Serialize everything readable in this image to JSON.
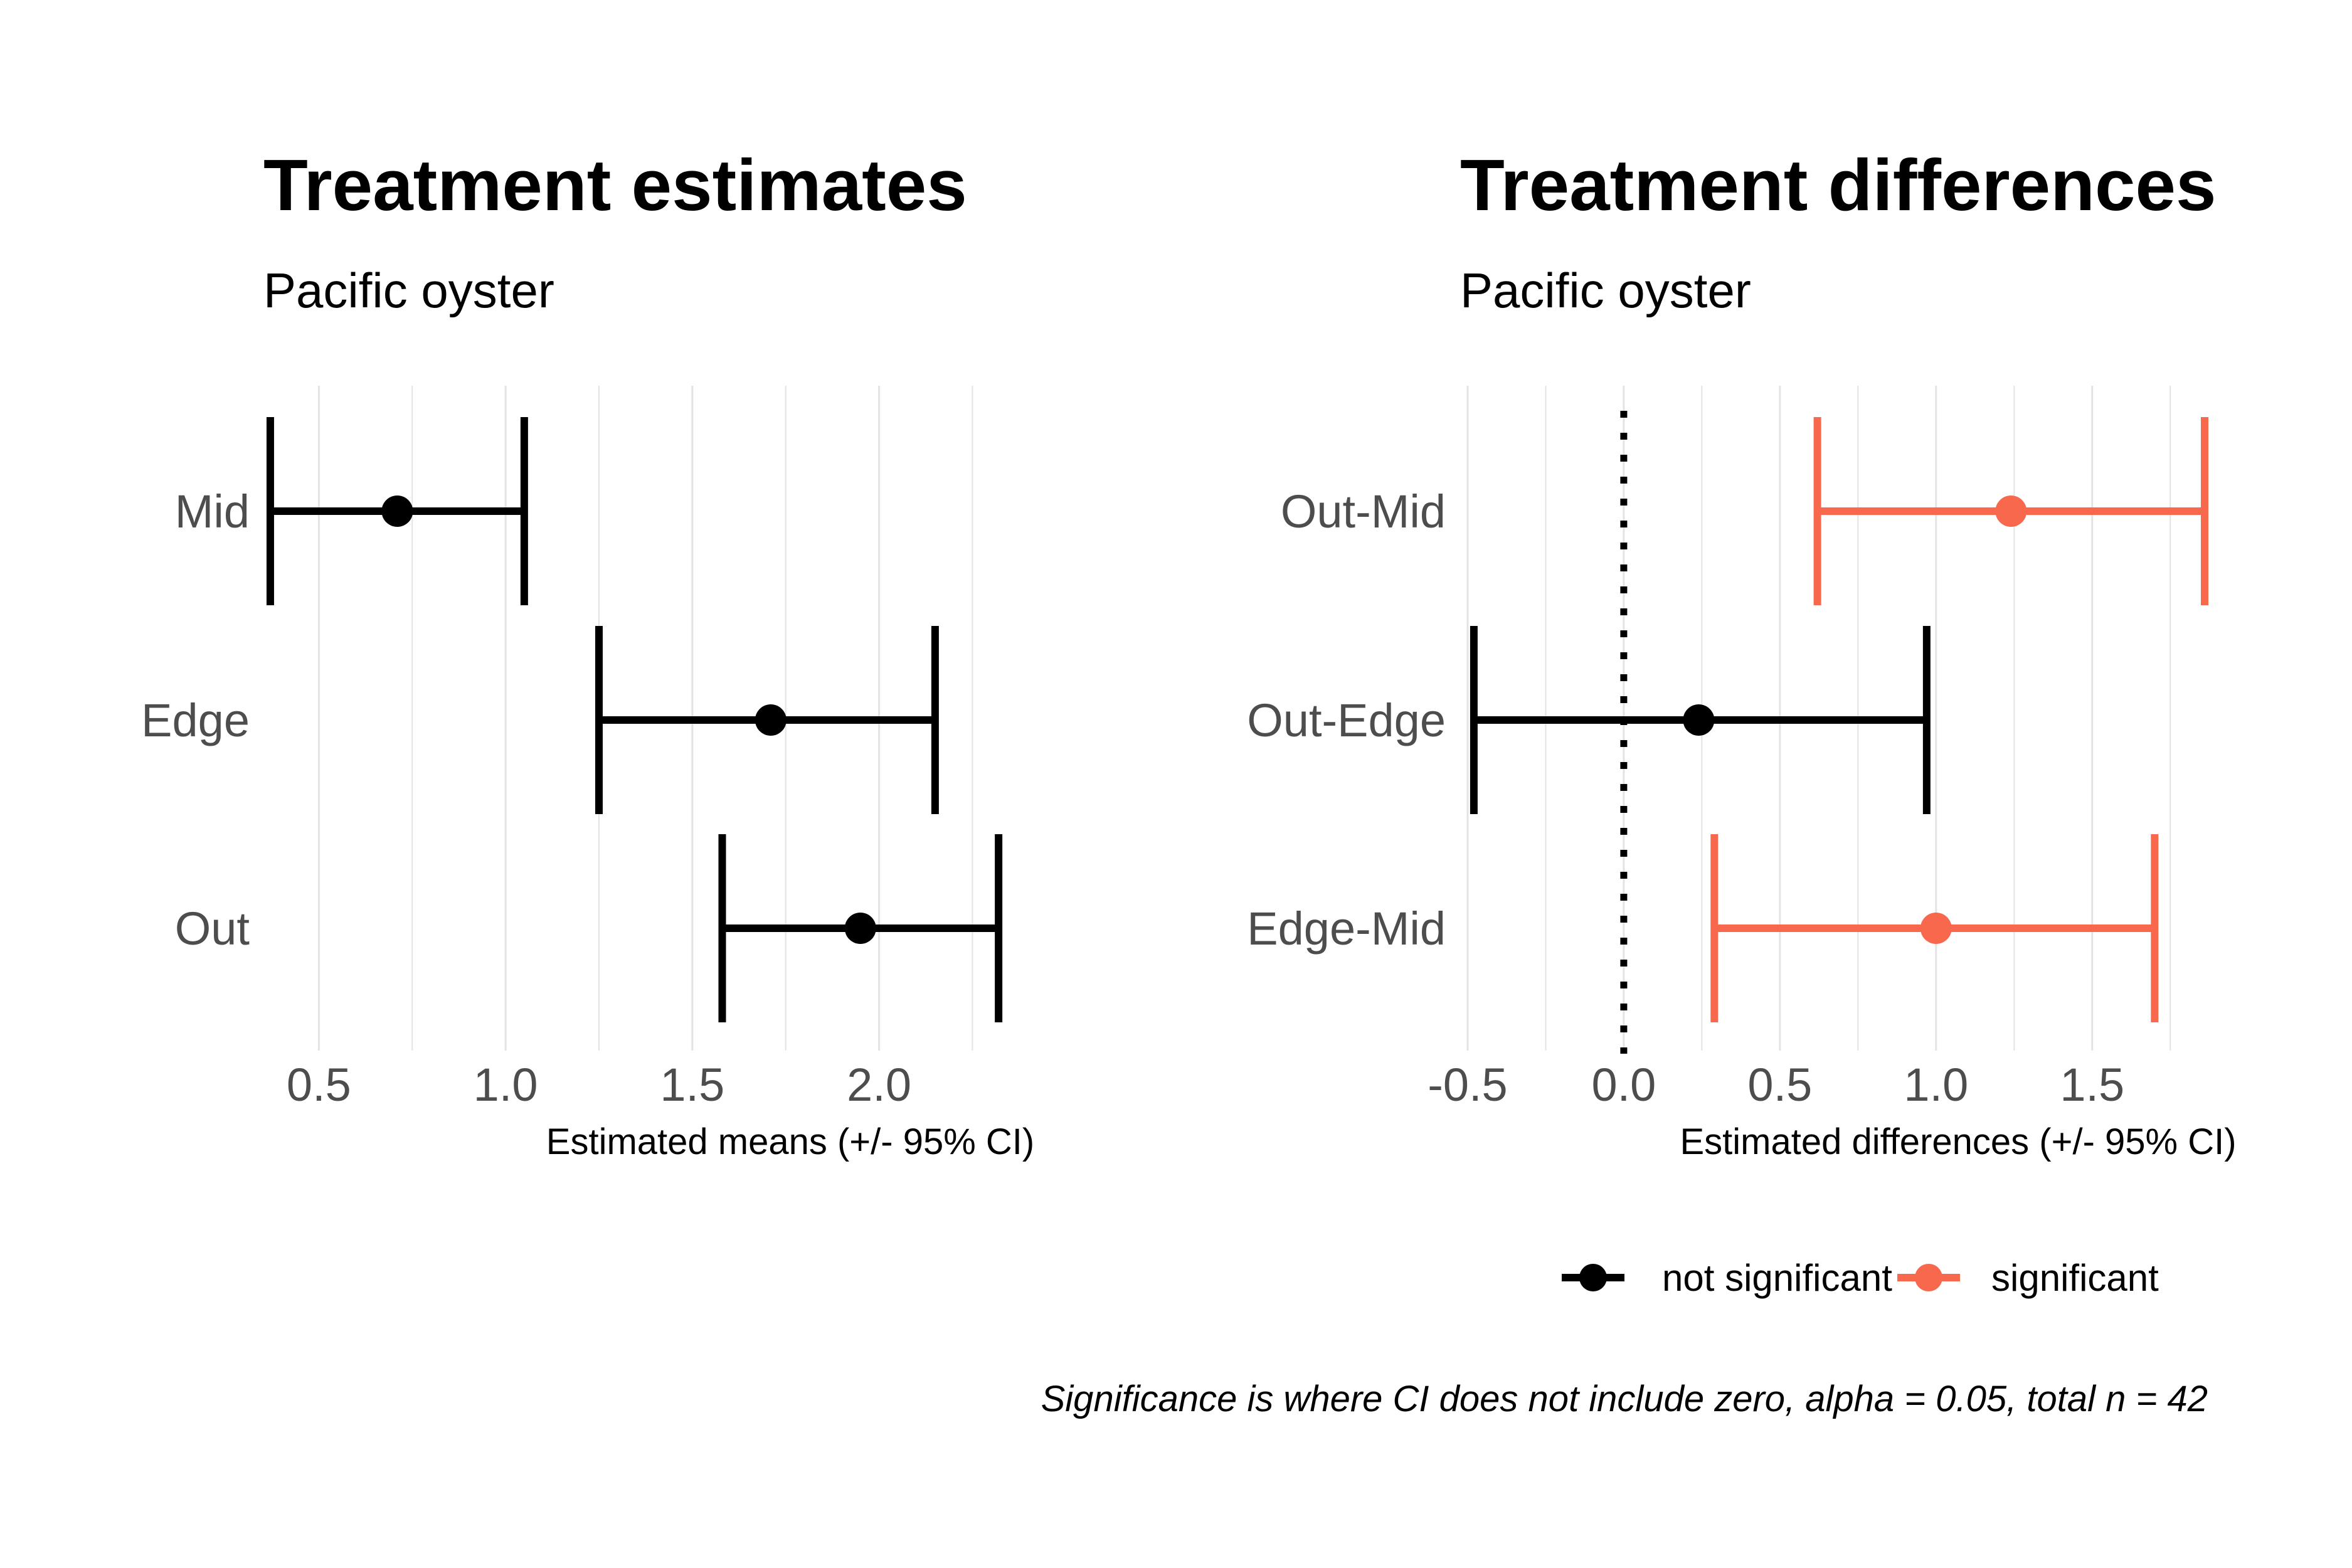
{
  "chart_data": [
    {
      "type": "errorbar",
      "title": "Treatment estimates",
      "subtitle": "Pacific oyster",
      "xlabel": "Estimated means (+/- 95% CI)",
      "ylabel": "",
      "xlim": [
        0.36,
        2.35
      ],
      "xticks": [
        0.5,
        1.0,
        1.5,
        2.0
      ],
      "xtick_labels": [
        "0.5",
        "1.0",
        "1.5",
        "2.0"
      ],
      "grid": true,
      "categories": [
        "Mid",
        "Edge",
        "Out"
      ],
      "points": [
        {
          "label": "Mid",
          "estimate": 0.71,
          "lower": 0.37,
          "upper": 1.05,
          "significant": false
        },
        {
          "label": "Edge",
          "estimate": 1.71,
          "lower": 1.25,
          "upper": 2.15,
          "significant": false
        },
        {
          "label": "Out",
          "estimate": 1.95,
          "lower": 1.58,
          "upper": 2.32,
          "significant": false
        }
      ],
      "color": "#000000"
    },
    {
      "type": "errorbar",
      "title": "Treatment differences",
      "subtitle": "Pacific oyster",
      "xlabel": "Estimated differences (+/- 95% CI)",
      "ylabel": "",
      "xlim": [
        -0.52,
        1.87
      ],
      "xticks": [
        -0.5,
        0.0,
        0.5,
        1.0,
        1.5
      ],
      "xtick_labels": [
        "-0.5",
        "0.0",
        "0.5",
        "1.0",
        "1.5"
      ],
      "grid": true,
      "reference_line": 0.0,
      "categories": [
        "Out-Mid",
        "Out-Edge",
        "Edge-Mid"
      ],
      "points": [
        {
          "label": "Out-Mid",
          "estimate": 1.24,
          "lower": 0.62,
          "upper": 1.86,
          "significant": true
        },
        {
          "label": "Out-Edge",
          "estimate": 0.24,
          "lower": -0.48,
          "upper": 0.97,
          "significant": false
        },
        {
          "label": "Edge-Mid",
          "estimate": 1.0,
          "lower": 0.29,
          "upper": 1.7,
          "significant": true
        }
      ],
      "legend": {
        "position": "bottom-right",
        "entries": [
          {
            "label": "not significant",
            "color": "#000000"
          },
          {
            "label": "significant",
            "color": "#F8684D"
          }
        ]
      },
      "caption": "Significance is where CI does not include zero, alpha = 0.05, total n = 42"
    }
  ],
  "colors": {
    "not_significant": "#000000",
    "significant": "#F8684D",
    "grid": "#e3e3e3",
    "reference": "#000000"
  }
}
